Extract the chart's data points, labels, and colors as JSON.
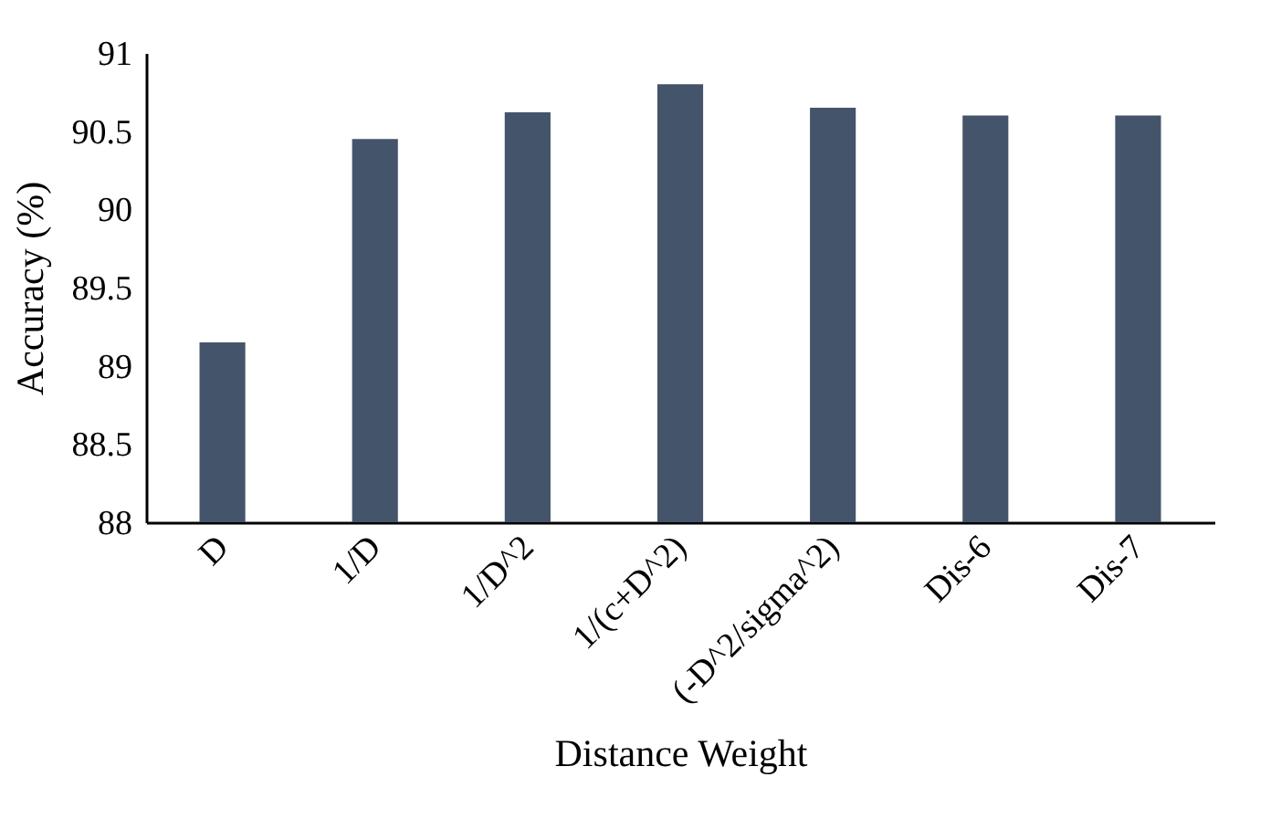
{
  "chart_data": {
    "type": "bar",
    "xlabel": "Distance Weight",
    "ylabel": "Accuracy (%)",
    "categories": [
      "D",
      "1/D",
      "1/D^2",
      "1/(c+D^2)",
      "(-D^2/sigma^2)",
      "Dis-6",
      "Dis-7"
    ],
    "values": [
      89.15,
      90.45,
      90.62,
      90.8,
      90.65,
      90.6,
      90.6
    ],
    "color": "#44546a",
    "ylim": [
      88,
      91
    ],
    "yticks": [
      88,
      88.5,
      89,
      89.5,
      90,
      90.5,
      91
    ],
    "grid": false
  }
}
